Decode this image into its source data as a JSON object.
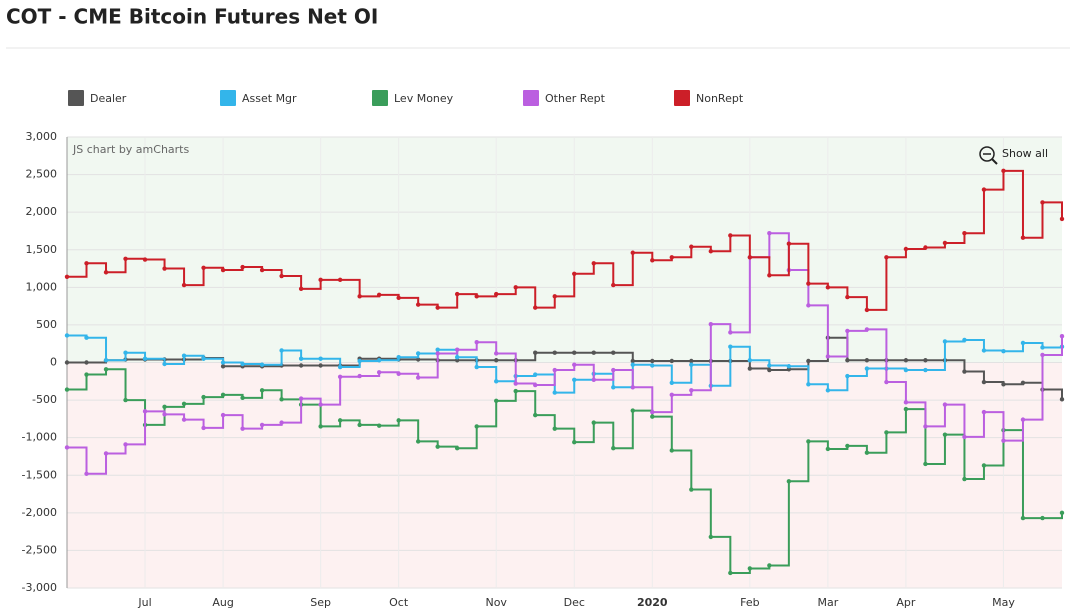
{
  "chart_data": {
    "type": "step-line",
    "title": "COT - CME Bitcoin Futures Net OI",
    "credit": "JS chart by amCharts",
    "zoom_button": "Show all",
    "categories": [
      null,
      null,
      null,
      null,
      "Jul",
      null,
      null,
      null,
      "Aug",
      null,
      null,
      null,
      null,
      "Sep",
      null,
      null,
      null,
      "Oct",
      null,
      null,
      null,
      null,
      "Nov",
      null,
      null,
      null,
      "Dec",
      null,
      null,
      null,
      "2020",
      null,
      null,
      null,
      null,
      "Feb",
      null,
      null,
      null,
      "Mar",
      null,
      null,
      null,
      "Apr",
      null,
      null,
      null,
      null,
      "May",
      null,
      null,
      null
    ],
    "ylim": [
      -3000,
      3000
    ],
    "yticks": [
      {
        "value": -3000,
        "label": "-3,000"
      },
      {
        "value": -2500,
        "label": "-2,500"
      },
      {
        "value": -2000,
        "label": "-2,000"
      },
      {
        "value": -1500,
        "label": "-1,500"
      },
      {
        "value": -1000,
        "label": "-1,000"
      },
      -500,
      0,
      500,
      {
        "value": 1000,
        "label": "1,000"
      },
      {
        "value": 1500,
        "label": "1,500"
      },
      {
        "value": 2000,
        "label": "2,000"
      },
      {
        "value": 2500,
        "label": "2,500"
      },
      {
        "value": 3000,
        "label": "3,000"
      }
    ],
    "grid": true,
    "legend": "top",
    "series": [
      {
        "name": "Dealer",
        "color": "#555555",
        "values": [
          0,
          0,
          30,
          40,
          40,
          40,
          40,
          60,
          -50,
          -50,
          -50,
          -40,
          -40,
          -40,
          -40,
          50,
          50,
          40,
          40,
          30,
          30,
          30,
          30,
          30,
          130,
          130,
          130,
          130,
          130,
          20,
          20,
          20,
          20,
          20,
          20,
          -80,
          -100,
          -90,
          20,
          330,
          30,
          30,
          30,
          30,
          30,
          30,
          -120,
          -260,
          -290,
          -270,
          -360,
          -490
        ]
      },
      {
        "name": "Asset Mgr",
        "color": "#33b5ea",
        "values": [
          360,
          330,
          30,
          130,
          50,
          -20,
          90,
          50,
          0,
          -20,
          -30,
          160,
          50,
          50,
          -60,
          20,
          30,
          70,
          120,
          170,
          70,
          -60,
          -250,
          -180,
          -160,
          -400,
          -230,
          -150,
          -330,
          -30,
          -40,
          -270,
          -30,
          -310,
          210,
          30,
          -40,
          -50,
          -290,
          -370,
          -180,
          -80,
          -80,
          -100,
          -100,
          280,
          300,
          160,
          150,
          260,
          200,
          210
        ]
      },
      {
        "name": "Lev Money",
        "color": "#3a9d5a",
        "values": [
          -360,
          -160,
          -90,
          -500,
          -830,
          -590,
          -550,
          -460,
          -430,
          -470,
          -370,
          -490,
          -560,
          -850,
          -770,
          -830,
          -840,
          -770,
          -1050,
          -1120,
          -1140,
          -850,
          -510,
          -380,
          -700,
          -880,
          -1060,
          -800,
          -1140,
          -640,
          -720,
          -1170,
          -1690,
          -2320,
          -2800,
          -2740,
          -2700,
          -1580,
          -1050,
          -1150,
          -1110,
          -1200,
          -930,
          -620,
          -1350,
          -960,
          -1550,
          -1370,
          -900,
          -2070,
          -2070,
          -2000
        ]
      },
      {
        "name": "Other Rept",
        "color": "#bb5fe0",
        "values": [
          -1130,
          -1480,
          -1210,
          -1090,
          -650,
          -690,
          -760,
          -870,
          -700,
          -880,
          -830,
          -800,
          -480,
          -560,
          -190,
          -180,
          -130,
          -150,
          -200,
          120,
          170,
          270,
          120,
          -280,
          -300,
          -100,
          -30,
          -230,
          -100,
          -330,
          -660,
          -430,
          -370,
          510,
          400,
          1400,
          1720,
          1230,
          760,
          80,
          420,
          440,
          -260,
          -530,
          -850,
          -560,
          -990,
          -660,
          -1040,
          -760,
          100,
          350
        ]
      },
      {
        "name": "NonRept",
        "color": "#cc1f28",
        "values": [
          1140,
          1320,
          1200,
          1380,
          1370,
          1250,
          1030,
          1260,
          1230,
          1270,
          1230,
          1150,
          980,
          1100,
          1100,
          880,
          900,
          860,
          770,
          730,
          910,
          880,
          910,
          1000,
          730,
          880,
          1180,
          1320,
          1030,
          1460,
          1360,
          1400,
          1540,
          1480,
          1690,
          1400,
          1160,
          1580,
          1050,
          1000,
          870,
          700,
          1400,
          1510,
          1530,
          1590,
          1720,
          2300,
          2550,
          1660,
          2130,
          1910
        ]
      }
    ]
  }
}
